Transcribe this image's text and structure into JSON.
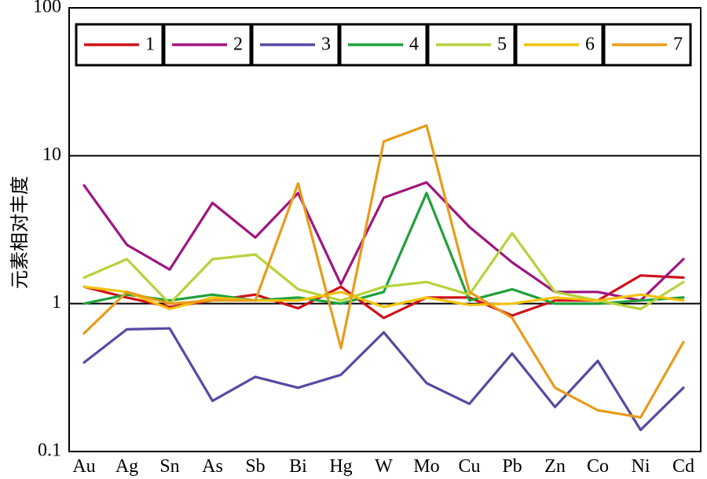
{
  "chart_data": {
    "type": "line",
    "yscale": "log",
    "ylabel": "元素相对丰度",
    "xlabel": "",
    "ylim": [
      0.1,
      100
    ],
    "ytick_labels": [
      "100",
      "10",
      "1",
      "0.1"
    ],
    "ytick_values": [
      100,
      10,
      1,
      0.1
    ],
    "categories": [
      "Au",
      "Ag",
      "Sn",
      "As",
      "Sb",
      "Bi",
      "Hg",
      "W",
      "Mo",
      "Cu",
      "Pb",
      "Zn",
      "Co",
      "Ni",
      "Cd"
    ],
    "gridlines_y": [
      1,
      10
    ],
    "legend_position": "top",
    "series": [
      {
        "name": "1",
        "color": "#d0101a",
        "values": [
          1.3,
          1.1,
          0.95,
          1.05,
          1.15,
          0.93,
          1.3,
          0.8,
          1.1,
          1.1,
          0.83,
          1.05,
          1.05,
          1.55,
          1.5
        ]
      },
      {
        "name": "2",
        "color": "#a0157f",
        "values": [
          6.3,
          2.5,
          1.7,
          4.8,
          2.8,
          5.6,
          1.35,
          5.2,
          6.6,
          3.3,
          1.9,
          1.2,
          1.2,
          1.05,
          2.0
        ]
      },
      {
        "name": "3",
        "color": "#5849a3",
        "values": [
          0.4,
          0.67,
          0.68,
          0.22,
          0.32,
          0.27,
          0.33,
          0.64,
          0.29,
          0.21,
          0.46,
          0.2,
          0.41,
          0.14,
          0.27
        ]
      },
      {
        "name": "4",
        "color": "#1fa03a",
        "values": [
          1.0,
          1.15,
          1.05,
          1.15,
          1.05,
          1.1,
          1.0,
          1.2,
          5.6,
          1.05,
          1.25,
          1.0,
          1.0,
          1.05,
          1.1
        ]
      },
      {
        "name": "5",
        "color": "#b5d33a",
        "values": [
          1.5,
          2.0,
          1.0,
          2.0,
          2.15,
          1.25,
          1.05,
          1.3,
          1.4,
          1.15,
          3.0,
          1.2,
          1.05,
          0.92,
          1.4
        ]
      },
      {
        "name": "6",
        "color": "#f4c20a",
        "values": [
          1.3,
          1.2,
          0.92,
          1.1,
          1.05,
          1.05,
          1.2,
          0.95,
          1.1,
          0.98,
          1.0,
          1.1,
          1.05,
          1.15,
          1.05
        ]
      },
      {
        "name": "7",
        "color": "#e89b1a",
        "values": [
          0.63,
          1.2,
          1.0,
          1.05,
          1.05,
          6.5,
          0.5,
          12.5,
          16.0,
          1.2,
          0.8,
          0.27,
          0.19,
          0.17,
          0.55
        ]
      }
    ]
  }
}
